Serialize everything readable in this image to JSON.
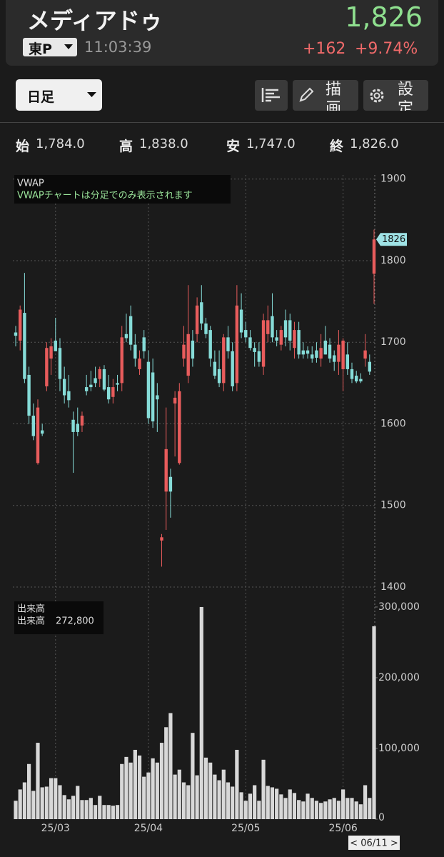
{
  "header": {
    "name": "メディアドゥ",
    "price": "1,826",
    "market": "東P",
    "time": "11:03:39",
    "change": "+162",
    "change_pct": "+9.74%"
  },
  "toolbar": {
    "period": "日足",
    "draw": "描画",
    "settings": "設定"
  },
  "summary": [
    {
      "label": "始",
      "value": "1,784.0"
    },
    {
      "label": "高",
      "value": "1,838.0"
    },
    {
      "label": "安",
      "value": "1,747.0"
    },
    {
      "label": "終",
      "value": "1,826.0"
    }
  ],
  "nav_date": "< 06/11 >",
  "chart_data": [
    {
      "type": "candlestick",
      "legend_title": "VWAP",
      "note": "VWAPチャートは分足でのみ表示されます",
      "last_label": "1826",
      "up_color": "#e85c5c",
      "down_color": "#86dcd8",
      "grid": true,
      "ylim": [
        1393,
        1905
      ],
      "yticks": [
        1400,
        1500,
        1600,
        1700,
        1800,
        1900
      ],
      "xticks": [
        {
          "value": 9,
          "label": "25/03"
        },
        {
          "value": 30,
          "label": "25/04"
        },
        {
          "value": 52,
          "label": "25/05"
        },
        {
          "value": 74,
          "label": "25/06"
        }
      ],
      "open": [
        1712,
        1702,
        1736,
        1660,
        1610,
        1552,
        1592,
        1646,
        1680,
        1702,
        1693,
        1655,
        1640,
        1605,
        1600,
        1598,
        1645,
        1648,
        1656,
        1655,
        1667,
        1645,
        1633,
        1650,
        1650,
        1710,
        1732,
        1697,
        1667,
        1706,
        1676,
        1663,
        1635,
        1457,
        1517,
        1535,
        1625,
        1552,
        1680,
        1659,
        1702,
        1710,
        1749,
        1723,
        1715,
        1676,
        1667,
        1650,
        1706,
        1689,
        1650,
        1740,
        1715,
        1706,
        1693,
        1689,
        1670,
        1710,
        1732,
        1706,
        1697,
        1727,
        1727,
        1693,
        1715,
        1690,
        1690,
        1685,
        1690,
        1680,
        1702,
        1697,
        1684,
        1676,
        1667,
        1685,
        1667,
        1659,
        1655,
        1680,
        1676,
        1784
      ],
      "high": [
        1720,
        1745,
        1785,
        1670,
        1625,
        1630,
        1600,
        1700,
        1705,
        1730,
        1705,
        1670,
        1660,
        1615,
        1620,
        1615,
        1660,
        1665,
        1670,
        1670,
        1672,
        1660,
        1655,
        1660,
        1720,
        1735,
        1745,
        1710,
        1690,
        1715,
        1690,
        1680,
        1650,
        1465,
        1620,
        1545,
        1640,
        1650,
        1720,
        1770,
        1715,
        1755,
        1770,
        1730,
        1720,
        1690,
        1690,
        1710,
        1720,
        1700,
        1770,
        1760,
        1725,
        1715,
        1700,
        1700,
        1735,
        1745,
        1760,
        1715,
        1720,
        1740,
        1735,
        1725,
        1725,
        1700,
        1695,
        1695,
        1700,
        1710,
        1720,
        1705,
        1690,
        1715,
        1705,
        1700,
        1675,
        1665,
        1662,
        1710,
        1685,
        1838
      ],
      "low": [
        1695,
        1690,
        1650,
        1600,
        1580,
        1550,
        1585,
        1640,
        1660,
        1690,
        1640,
        1625,
        1620,
        1540,
        1585,
        1590,
        1635,
        1640,
        1645,
        1645,
        1640,
        1625,
        1625,
        1640,
        1640,
        1700,
        1690,
        1670,
        1660,
        1680,
        1600,
        1595,
        1590,
        1425,
        1470,
        1485,
        1560,
        1550,
        1670,
        1650,
        1670,
        1700,
        1715,
        1705,
        1670,
        1655,
        1645,
        1640,
        1680,
        1640,
        1640,
        1705,
        1700,
        1690,
        1670,
        1670,
        1660,
        1700,
        1700,
        1695,
        1690,
        1695,
        1690,
        1680,
        1680,
        1680,
        1680,
        1675,
        1675,
        1670,
        1685,
        1675,
        1665,
        1660,
        1640,
        1660,
        1650,
        1650,
        1650,
        1670,
        1660,
        1747
      ],
      "close": [
        1708,
        1740,
        1655,
        1610,
        1585,
        1620,
        1588,
        1693,
        1695,
        1689,
        1655,
        1635,
        1629,
        1590,
        1590,
        1610,
        1640,
        1645,
        1650,
        1667,
        1642,
        1630,
        1645,
        1648,
        1706,
        1705,
        1697,
        1680,
        1680,
        1689,
        1607,
        1603,
        1630,
        1461,
        1569,
        1517,
        1632,
        1640,
        1697,
        1710,
        1680,
        1745,
        1723,
        1710,
        1680,
        1659,
        1650,
        1706,
        1689,
        1646,
        1745,
        1712,
        1706,
        1693,
        1688,
        1676,
        1727,
        1727,
        1706,
        1702,
        1715,
        1706,
        1702,
        1715,
        1685,
        1685,
        1686,
        1680,
        1681,
        1693,
        1685,
        1680,
        1676,
        1697,
        1702,
        1667,
        1655,
        1652,
        1652,
        1690,
        1664,
        1826
      ]
    },
    {
      "type": "bar",
      "legend_title": "出来高",
      "series_name": "出来高",
      "last_value_label": "272,800",
      "color": "#d8d8d8",
      "ylim": [
        0,
        305000
      ],
      "yticks": [
        0,
        {
          "value": 100000,
          "label": "100,000"
        },
        {
          "value": 200000,
          "label": "200,000"
        },
        {
          "value": 300000,
          "label": "300,000"
        }
      ],
      "values": [
        26000,
        42000,
        52000,
        78000,
        40000,
        108000,
        45000,
        46000,
        58000,
        58000,
        48000,
        34000,
        28000,
        33000,
        47000,
        27000,
        27000,
        30000,
        20000,
        33000,
        20000,
        20000,
        19000,
        20000,
        78000,
        88000,
        80000,
        98000,
        90000,
        60000,
        66000,
        86000,
        80000,
        108000,
        130000,
        150000,
        63000,
        70000,
        52000,
        48000,
        122000,
        62000,
        300000,
        87000,
        80000,
        63000,
        55000,
        70000,
        52000,
        46000,
        98000,
        38000,
        26000,
        36000,
        48000,
        26000,
        84000,
        47000,
        45000,
        43000,
        35000,
        30000,
        42000,
        37000,
        27000,
        25000,
        36000,
        30000,
        26000,
        23000,
        25000,
        28000,
        30000,
        26000,
        42000,
        30000,
        30000,
        25000,
        21000,
        48000,
        30000,
        272800
      ]
    }
  ]
}
